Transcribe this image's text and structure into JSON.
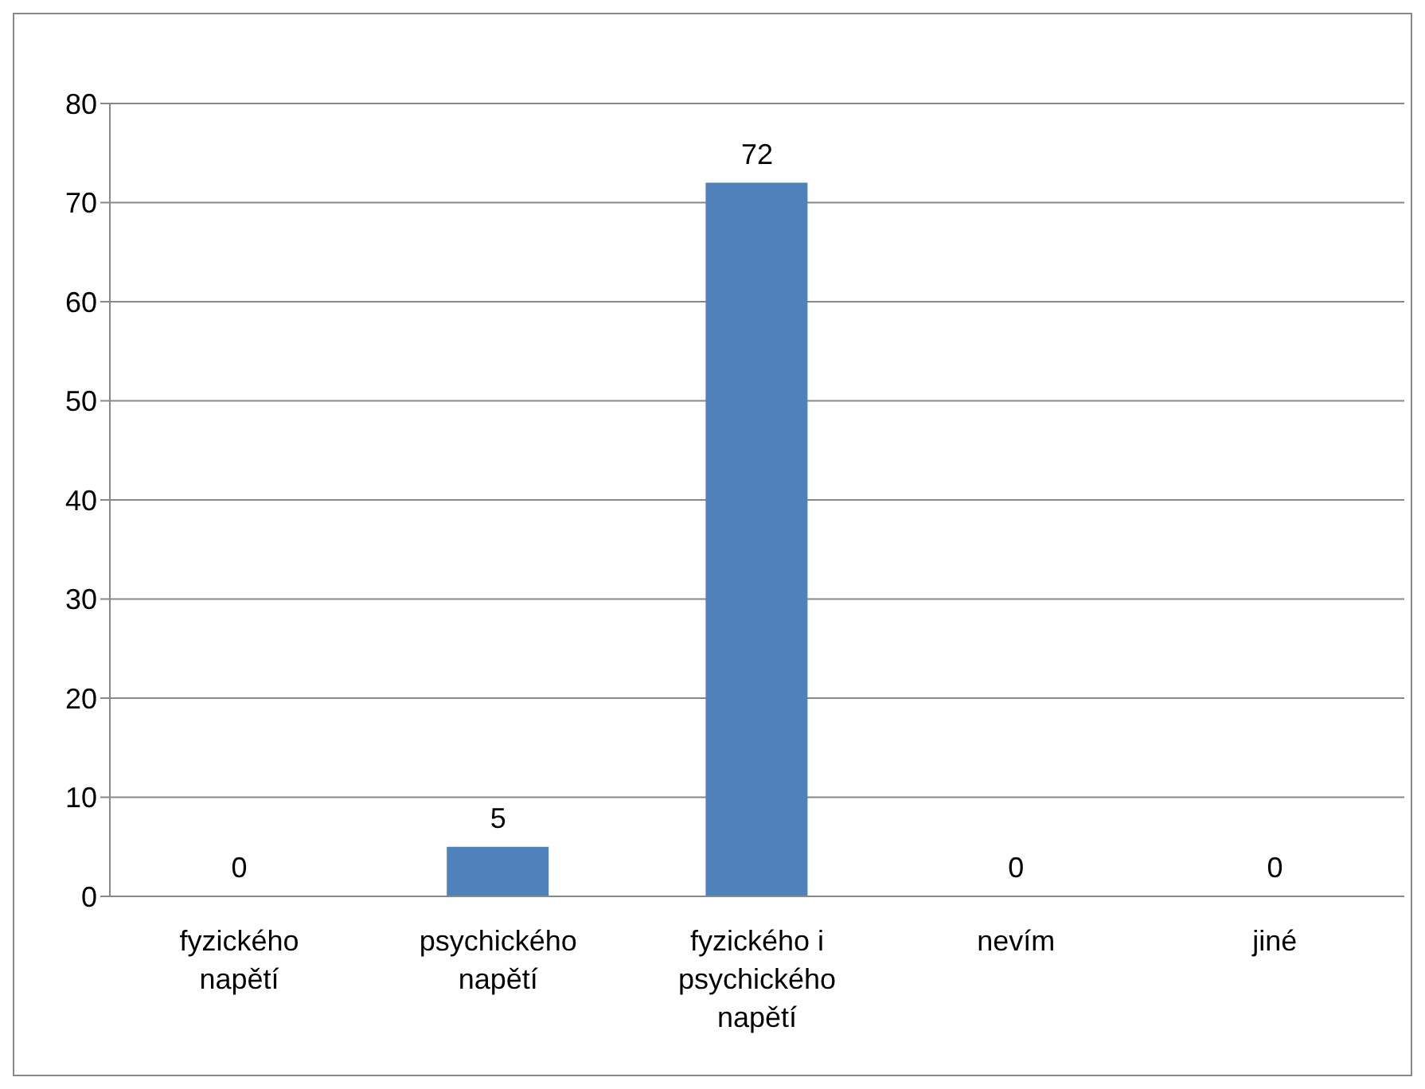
{
  "chart_data": {
    "type": "bar",
    "categories": [
      "fyzického napětí",
      "psychického napětí",
      "fyzického i psychického napětí",
      "nevím",
      "jiné"
    ],
    "values": [
      0,
      5,
      72,
      0,
      0
    ],
    "color": "#4f81bd",
    "ylim": [
      0,
      80
    ],
    "yticks": [
      0,
      10,
      20,
      30,
      40,
      50,
      60,
      70,
      80
    ],
    "grid": "y",
    "data_labels": true,
    "legend": false
  }
}
